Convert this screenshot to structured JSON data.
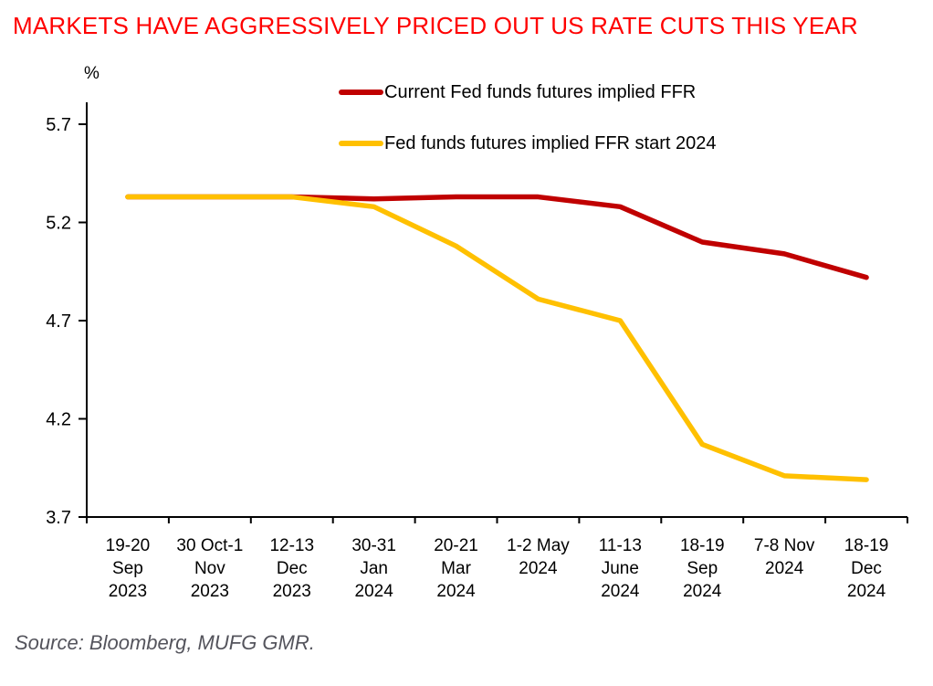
{
  "title": "MARKETS HAVE AGGRESSIVELY PRICED OUT US RATE CUTS THIS YEAR",
  "y_axis_unit": "%",
  "source": "Source: Bloomberg, MUFG GMR.",
  "colors": {
    "title": "#FF0000",
    "axis": "#000000",
    "tick_label": "#000000",
    "source_text": "#54545C",
    "current_line": "#C00000",
    "start2024_line": "#FFC000"
  },
  "chart_data": {
    "type": "line",
    "title": "MARKETS HAVE AGGRESSIVELY PRICED OUT US RATE CUTS THIS YEAR",
    "xlabel": "",
    "ylabel": "%",
    "ylim": [
      3.7,
      5.7
    ],
    "y_ticks": [
      5.7,
      5.2,
      4.7,
      4.2,
      3.7
    ],
    "grid": false,
    "legend_position": "top-center",
    "categories": [
      "19-20 Sep 2023",
      "30 Oct-1 Nov 2023",
      "12-13 Dec 2023",
      "30-31 Jan 2024",
      "20-21 Mar 2024",
      "1-2 May 2024",
      "11-13 June 2024",
      "18-19 Sep 2024",
      "7-8 Nov 2024",
      "18-19 Dec 2024"
    ],
    "category_label_lines": [
      [
        "19-20",
        "Sep",
        "2023"
      ],
      [
        "30 Oct-1",
        "Nov",
        "2023"
      ],
      [
        "12-13",
        "Dec",
        "2023"
      ],
      [
        "30-31",
        "Jan",
        "2024"
      ],
      [
        "20-21",
        "Mar",
        "2024"
      ],
      [
        "1-2 May",
        "2024"
      ],
      [
        "11-13",
        "June",
        "2024"
      ],
      [
        "18-19",
        "Sep",
        "2024"
      ],
      [
        "7-8 Nov",
        "2024"
      ],
      [
        "18-19",
        "Dec",
        "2024"
      ]
    ],
    "series": [
      {
        "name": "Current Fed funds futures implied FFR",
        "color": "#C00000",
        "values": [
          5.33,
          5.33,
          5.33,
          5.32,
          5.33,
          5.33,
          5.28,
          5.1,
          5.04,
          4.92
        ]
      },
      {
        "name": "Fed funds futures implied FFR start 2024",
        "color": "#FFC000",
        "values": [
          5.33,
          5.33,
          5.33,
          5.28,
          5.08,
          4.81,
          4.7,
          4.07,
          3.91,
          3.89
        ]
      }
    ]
  }
}
